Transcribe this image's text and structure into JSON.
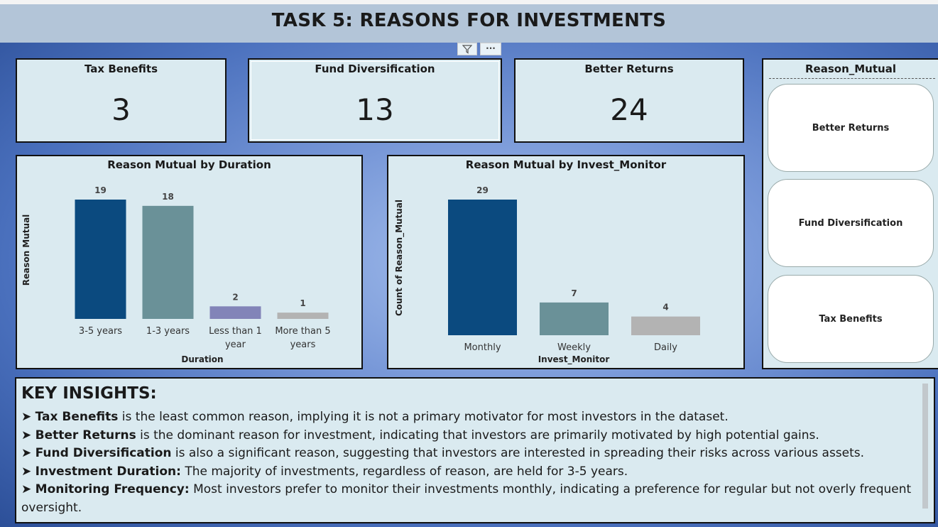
{
  "title": "TASK 5: REASONS FOR INVESTMENTS",
  "visual_header": {
    "icons": [
      "filter-icon",
      "more-options-icon"
    ],
    "more_text": "···"
  },
  "cards": [
    {
      "label": "Tax Benefits",
      "value": "3"
    },
    {
      "label": "Fund Diversification",
      "value": "13"
    },
    {
      "label": "Better Returns",
      "value": "24"
    }
  ],
  "slicer": {
    "title": "Reason_Mutual",
    "options": [
      "Better Returns",
      "Fund Diversification",
      "Tax Benefits"
    ]
  },
  "chart_data": [
    {
      "type": "bar",
      "title": "Reason Mutual by Duration",
      "xlabel": "Duration",
      "ylabel": "Reason Mutual",
      "categories": [
        "3-5 years",
        "1-3 years",
        "Less than 1 year",
        "More than 5 years"
      ],
      "values": [
        19,
        18,
        2,
        1
      ],
      "colors": [
        "#0b4a7f",
        "#6a9198",
        "#8284b8",
        "#b3b3b3"
      ],
      "ylim": [
        0,
        19
      ]
    },
    {
      "type": "bar",
      "title": "Reason Mutual by Invest_Monitor",
      "xlabel": "Invest_Monitor",
      "ylabel": "Count of Reason_Mutual",
      "categories": [
        "Monthly",
        "Weekly",
        "Daily"
      ],
      "values": [
        29,
        7,
        4
      ],
      "colors": [
        "#0b4a7f",
        "#6a9198",
        "#b3b3b3"
      ],
      "ylim": [
        0,
        29
      ]
    }
  ],
  "insights": {
    "heading": "KEY INSIGHTS:",
    "items": [
      {
        "bullet": "➤ ",
        "bold": "Tax Benefits",
        "text": " is the least common reason, implying it is not a primary motivator for most investors in the dataset."
      },
      {
        "bullet": "➤ ",
        "bold": "Better Returns",
        "text": " is the dominant reason for investment, indicating that investors are primarily motivated by high potential gains."
      },
      {
        "bullet": "➤ ",
        "bold": "Fund Diversification",
        "text": " is also a significant reason, suggesting that investors are interested in spreading their risks across various assets."
      },
      {
        "bullet": "➤ ",
        "bold": "Investment Duration:",
        "text": " The majority of investments, regardless of reason, are held for 3-5 years."
      },
      {
        "bullet": "➤ ",
        "bold": "Monitoring Frequency:",
        "text": " Most investors prefer to monitor their investments monthly, indicating a preference for regular but not overly frequent oversight."
      }
    ]
  }
}
